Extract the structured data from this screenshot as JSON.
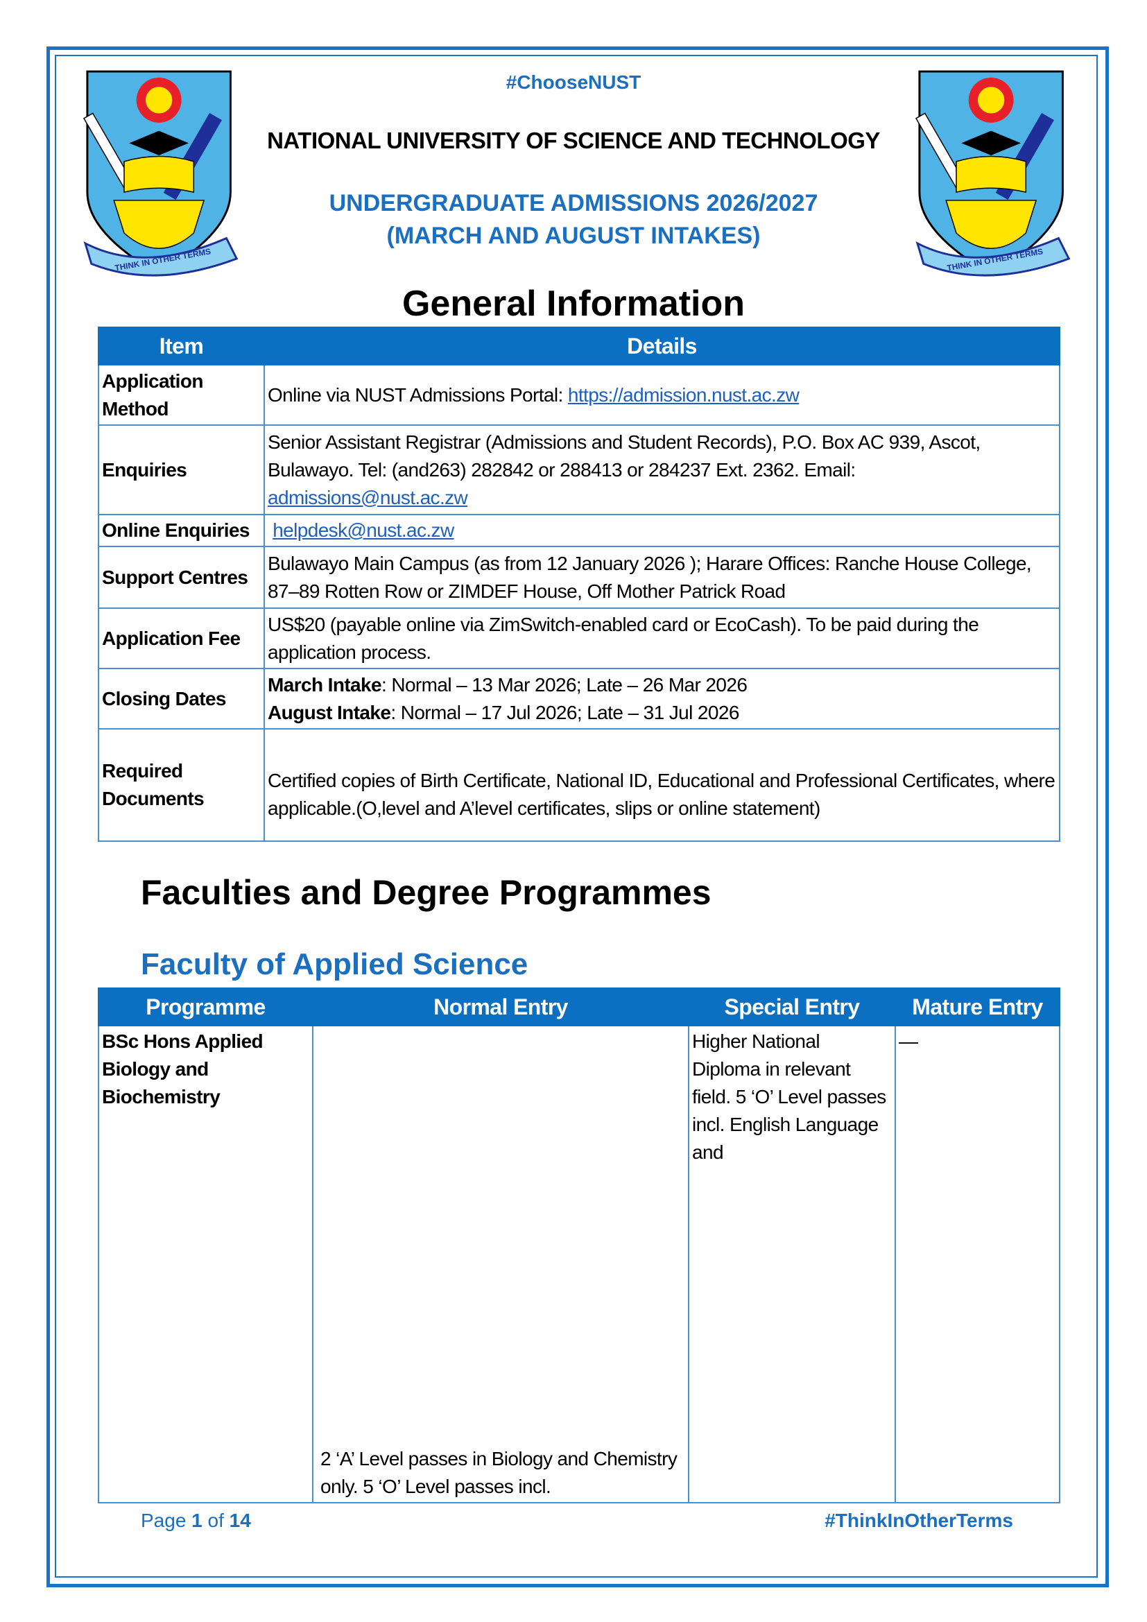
{
  "header": {
    "hashtag": "#ChooseNUST",
    "university": "NATIONAL UNIVERSITY OF SCIENCE AND TECHNOLOGY",
    "admissions_line1": "UNDERGRADUATE ADMISSIONS 2026/2027",
    "admissions_line2": "(MARCH AND AUGUST INTAKES)",
    "logo_motto": "THINK IN OTHER TERMS"
  },
  "general": {
    "title": "General Information",
    "columns": [
      "Item",
      "Details"
    ],
    "rows": [
      {
        "item": "Application Method",
        "details": "Online via NUST Admissions Portal: ",
        "link": "https://admission.nust.ac.zw"
      },
      {
        "item": "Enquiries",
        "details": "Senior Assistant Registrar (Admissions and Student Records), P.O. Box AC 939, Ascot, Bulawayo. Tel: (and263) 282842 or 288413 or 284237 Ext. 2362. Email: ",
        "link": "admissions@nust.ac.zw"
      },
      {
        "item": "Online Enquiries",
        "link": "helpdesk@nust.ac.zw"
      },
      {
        "item": "Support Centres",
        "details": "Bulawayo Main Campus (as from 12 January 2026 ); Harare Offices: Ranche House College, 87–89 Rotten Row or ZIMDEF House, Off Mother Patrick Road"
      },
      {
        "item": "Application Fee",
        "details": "US$20 (payable online via ZimSwitch-enabled card or EcoCash). To be paid during the application process."
      },
      {
        "item": "Closing Dates",
        "march_label": "March Intake",
        "march": ": Normal – 13 Mar 2026; Late – 26 Mar 2026",
        "august_label": "August Intake",
        "august": ": Normal – 17 Jul 2026; Late – 31 Jul 2026"
      },
      {
        "item": "Required Documents",
        "details": "Certified copies of Birth Certificate, National ID, Educational and Professional Certificates, where applicable.(O,level and A’level certificates, slips or online statement)"
      }
    ]
  },
  "faculties": {
    "title": "Faculties and Degree Programmes",
    "faculty": "Faculty of Applied Science",
    "columns": [
      "Programme",
      "Normal Entry",
      "Special Entry",
      "Mature Entry"
    ],
    "rows": [
      {
        "programme": "BSc Hons Applied Biology and Biochemistry",
        "normal": "2 ‘A’ Level passes in Biology and Chemistry only. 5 ‘O’ Level passes incl.",
        "special": "Higher National Diploma in relevant field. 5 ‘O’ Level passes incl. English Language and",
        "mature": "—"
      }
    ]
  },
  "footer": {
    "page_prefix": "Page ",
    "page": "1",
    "page_of": " of ",
    "page_total": "14",
    "hashtag": "#ThinkInOtherTerms"
  },
  "colors": {
    "brand": "#0b70c1",
    "border": "#1a73c4"
  }
}
